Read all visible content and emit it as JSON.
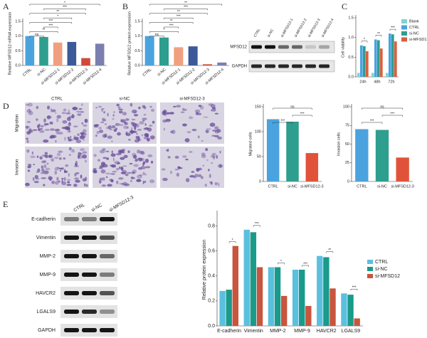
{
  "panel_labels": [
    "A",
    "B",
    "C",
    "D",
    "E"
  ],
  "chart_data": [
    {
      "type": "bar",
      "y_label": "Relative MFSD12 mRNA expression",
      "categories": [
        "CTRL",
        "si-NC",
        "si-MFSD12-1",
        "si-MFSD12-2",
        "si-MFSD12-3",
        "si-MFSD12-4"
      ],
      "values": [
        1.0,
        0.97,
        0.78,
        0.8,
        0.25,
        0.74
      ],
      "colors": [
        "#4aa3df",
        "#2e9e8f",
        "#f0a080",
        "#3c5a9a",
        "#d04a3a",
        "#7a7fb0"
      ],
      "ylim": [
        0,
        1.5
      ],
      "yticks": [
        {
          "value": 0,
          "label": "0.0"
        },
        {
          "value": 0.5,
          "label": "0.5"
        },
        {
          "value": 1,
          "label": "1.0"
        },
        {
          "value": 1.5,
          "label": "1.5"
        }
      ],
      "annotations": [
        "*",
        "***",
        "**",
        "*",
        "***",
        "***",
        "**",
        "ns"
      ]
    },
    {
      "type": "bar",
      "y_label": "Relative MFSD12 protein expression",
      "categories": [
        "CTRL",
        "si-NC",
        "si-MFSD12-1",
        "si-MFSD12-2",
        "si-MFSD12-3",
        "si-MFSD12-4"
      ],
      "values": [
        1.0,
        0.95,
        0.62,
        0.65,
        0.04,
        0.1
      ],
      "colors": [
        "#4aa3df",
        "#2e9e8f",
        "#f0a080",
        "#3c5a9a",
        "#d04a3a",
        "#7a7fb0"
      ],
      "ylim": [
        0,
        1.5
      ],
      "yticks": [
        {
          "value": 0,
          "label": "0.0"
        },
        {
          "value": 0.5,
          "label": "0.5"
        },
        {
          "value": 1,
          "label": "1.0"
        },
        {
          "value": 1.5,
          "label": "1.5"
        }
      ],
      "annotations": [
        "**",
        "***",
        "**",
        "***",
        "**",
        "***",
        "*",
        "ns"
      ]
    },
    {
      "type": "bar",
      "y_label": "Cell viability",
      "categories": [
        "24h",
        "48h",
        "72h"
      ],
      "series": [
        {
          "name": "Blank",
          "color": "#7fd3d0",
          "values": [
            0.1,
            0.1,
            0.1
          ]
        },
        {
          "name": "CTRL",
          "color": "#4aa3df",
          "values": [
            0.8,
            0.95,
            1.1
          ]
        },
        {
          "name": "si-NC",
          "color": "#2e9e8f",
          "values": [
            0.78,
            0.93,
            1.08
          ]
        },
        {
          "name": "si-MFSD12",
          "color": "#d9603e",
          "values": [
            0.65,
            0.72,
            0.9
          ]
        }
      ],
      "ylim": [
        0,
        1.5
      ],
      "yticks": [
        {
          "value": 0,
          "label": "0.0"
        },
        {
          "value": 0.5,
          "label": "0.5"
        },
        {
          "value": 1,
          "label": "1.0"
        },
        {
          "value": 1.5,
          "label": "1.5"
        }
      ],
      "annotations": [
        "*",
        "**",
        "***"
      ]
    },
    {
      "type": "bar",
      "y_label": "Migrated cells",
      "categories": [
        "CTRL",
        "si-NC",
        "si-MFSD12-3"
      ],
      "values": [
        125,
        120,
        57
      ],
      "colors": [
        "#4aa3df",
        "#2e9e8f",
        "#e0533a"
      ],
      "ylim": [
        0,
        150
      ],
      "yticks": [
        0,
        50,
        100,
        150
      ],
      "annotations": [
        "ns",
        "***",
        "***"
      ]
    },
    {
      "type": "bar",
      "y_label": "Invasion cells",
      "categories": [
        "CTRL",
        "si-NC",
        "si-MFSD12-3"
      ],
      "values": [
        70,
        69,
        32
      ],
      "colors": [
        "#4aa3df",
        "#2e9e8f",
        "#e0533a"
      ],
      "ylim": [
        0,
        100
      ],
      "yticks": [
        0,
        25,
        50,
        75,
        100
      ],
      "annotations": [
        "ns",
        "***",
        "***"
      ]
    },
    {
      "type": "bar",
      "y_label": "Relative protein expression",
      "categories": [
        "E-cadherin",
        "Vimentin",
        "MMP-2",
        "MMP-9",
        "HAVCR2",
        "LGALS9"
      ],
      "series": [
        {
          "name": "CTRL",
          "color": "#5bc0de",
          "values": [
            0.28,
            0.77,
            0.47,
            0.45,
            0.56,
            0.26
          ]
        },
        {
          "name": "si-NC",
          "color": "#1a9a8a",
          "values": [
            0.29,
            0.75,
            0.47,
            0.45,
            0.55,
            0.25
          ]
        },
        {
          "name": "si-MFSD12",
          "color": "#c8553d",
          "values": [
            0.64,
            0.47,
            0.24,
            0.16,
            0.3,
            0.06
          ]
        }
      ],
      "ylim": [
        0,
        0.9
      ],
      "yticks": [
        {
          "value": 0,
          "label": "0.0"
        },
        {
          "value": 0.2,
          "label": "0.2"
        },
        {
          "value": 0.4,
          "label": "0.4"
        },
        {
          "value": 0.6,
          "label": "0.6"
        },
        {
          "value": 0.8,
          "label": "0.8"
        }
      ],
      "annotations": [
        "*",
        "***",
        "*",
        "***",
        "**",
        "***"
      ]
    }
  ],
  "blot_B": {
    "lanes": [
      "CTRL",
      "si-NC",
      "si-MFSD12-1",
      "si-MFSD12-2",
      "si-MFSD12-3",
      "si-MFSD12-4"
    ],
    "rows": [
      "MFSD12",
      "GAPDH"
    ]
  },
  "micrographs": {
    "columns": [
      "CTRL",
      "si-NC",
      "si-MFSD12-3"
    ],
    "rows": [
      "Migration",
      "Invasion"
    ]
  },
  "blot_E": {
    "lanes": [
      "CTRL",
      "si-NC",
      "si-MFSD12-3"
    ],
    "rows": [
      "E-cadherin",
      "Vimentin",
      "MMP-2",
      "MMP-9",
      "HAVCR2",
      "LGALS9",
      "GAPDH"
    ]
  }
}
